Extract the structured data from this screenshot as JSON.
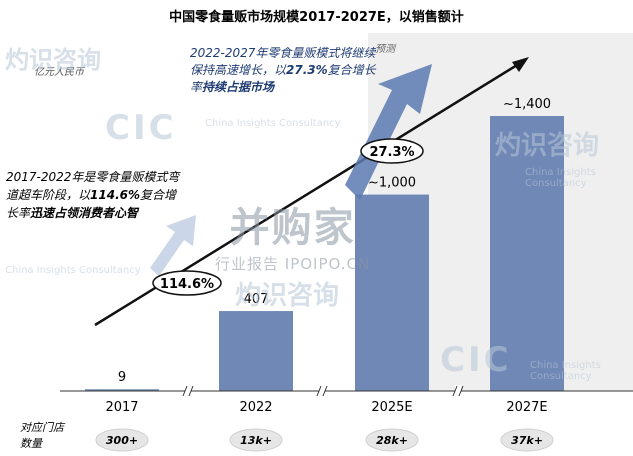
{
  "title": "中国零食量贩市场规模2017-2027E，以销售额计",
  "unit_label": "亿元人民币",
  "forecast_label": "预测",
  "annotation_2022_2027": {
    "part1": "2022-2027年零食量贩模式将继续保持高速增长，以",
    "rate": "27.3%",
    "part2": "复合增长率",
    "emph": "持续占据市场"
  },
  "annotation_2017_2022": {
    "part1": "2017-2022年是零食量贩模式弯道超车阶段，以",
    "rate": "114.6%",
    "part2": "复合增长率",
    "emph": "迅速占领消费者心智"
  },
  "store_count_label": "对应门店数量",
  "watermarks": {
    "cic": "CIC",
    "cn": "灼识咨询",
    "en": "China Insights Consultancy",
    "center_cn": "并购家",
    "center_sub": "行业报告 IPOIPO.CN"
  },
  "chart_data": {
    "type": "bar",
    "categories": [
      "2017",
      "2022",
      "2025E",
      "2027E"
    ],
    "values": [
      9,
      407,
      1000,
      1400
    ],
    "value_labels": [
      "9",
      "407",
      "~1,000",
      "~1,400"
    ],
    "forecast_categories": [
      "2025E",
      "2027E"
    ],
    "growth_rates": [
      "114.6%",
      "27.3%"
    ],
    "store_counts": [
      "300+",
      "13k+",
      "28k+",
      "37k+"
    ],
    "bar_color": "#6f88b5",
    "forecast_bg_color": "#efefef",
    "axis_breaks": true
  }
}
